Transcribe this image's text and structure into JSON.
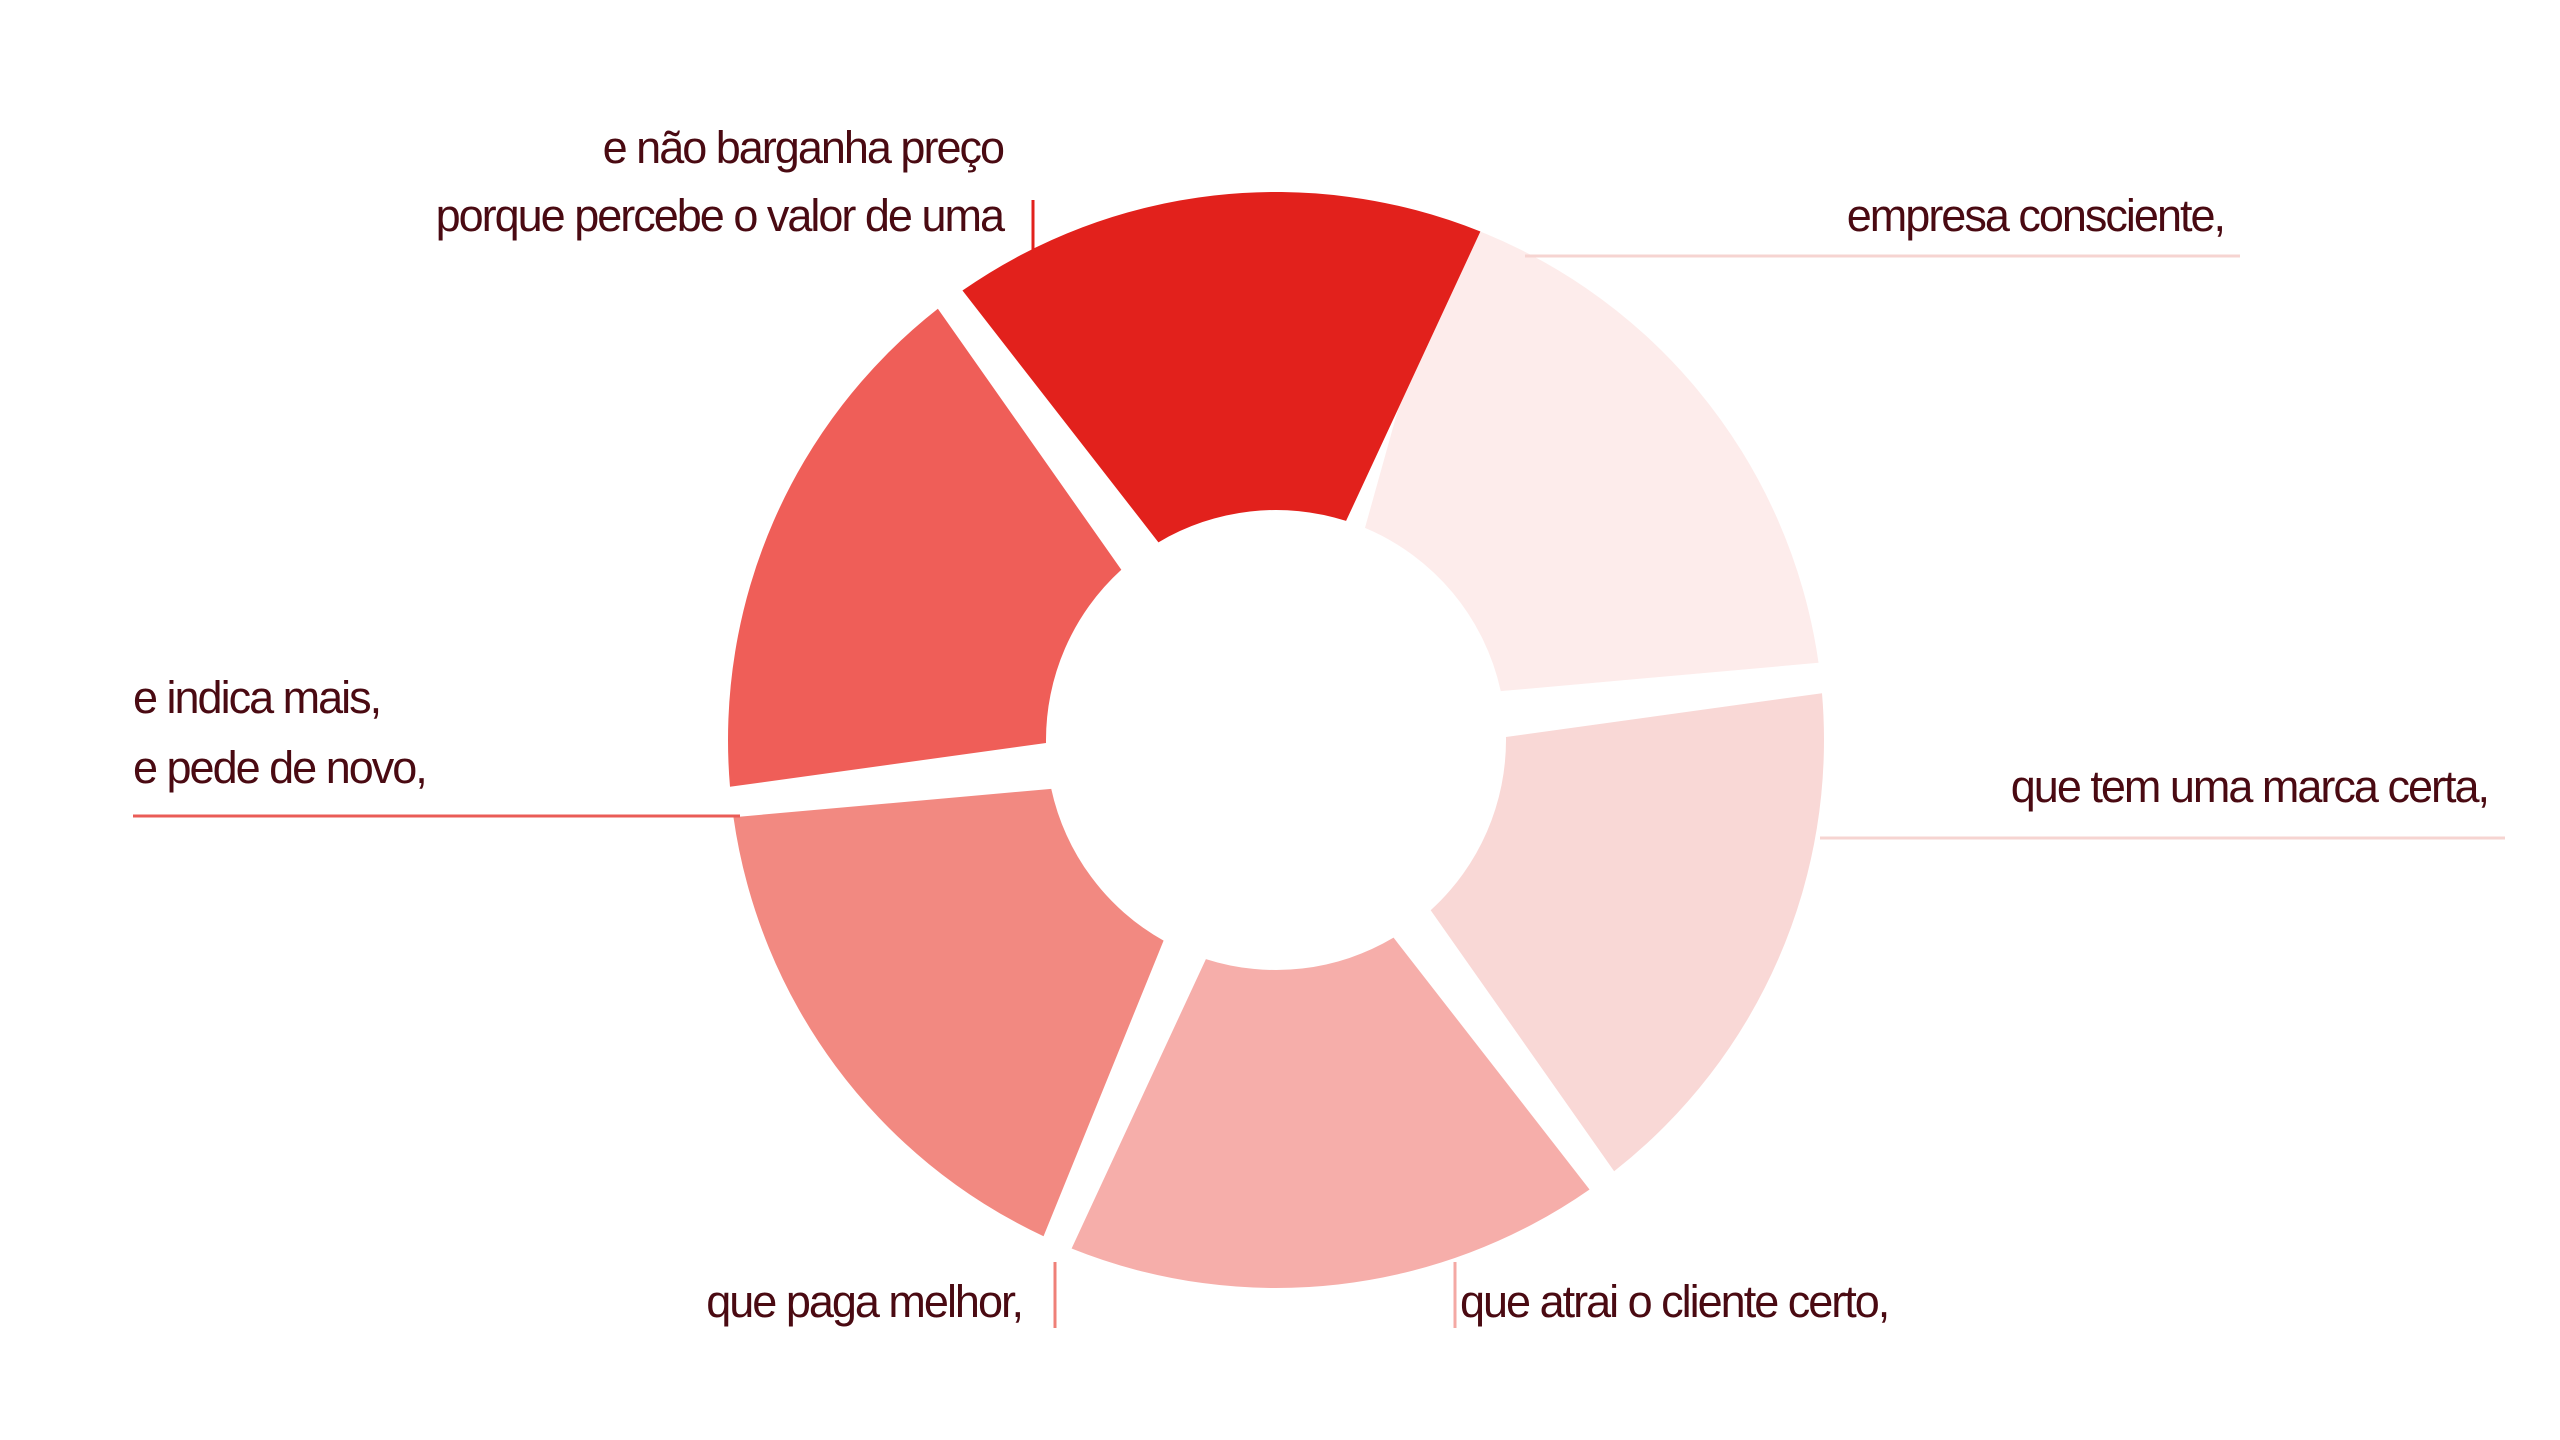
{
  "diagram": {
    "segments": [
      {
        "id": "empresa-consciente",
        "lines": [
          "empresa consciente,"
        ],
        "color": "#fdeceb",
        "leader_color": "#f6d4d1"
      },
      {
        "id": "marca-certa",
        "lines": [
          "que tem uma marca certa,"
        ],
        "color": "#f9d8d6",
        "leader_color": "#f6d4d1"
      },
      {
        "id": "cliente-certo",
        "lines": [
          "que atrai o cliente certo,"
        ],
        "color": "#f6aeaa",
        "leader_color": "#f4a9a4"
      },
      {
        "id": "paga-melhor",
        "lines": [
          "que paga melhor,"
        ],
        "color": "#f28981",
        "leader_color": "#ef8078"
      },
      {
        "id": "indica-mais",
        "lines": [
          "e indica mais,",
          "e pede de novo,"
        ],
        "color": "#ef5e58",
        "leader_color": "#ea5c57"
      },
      {
        "id": "nao-barganha",
        "lines": [
          "e não barganha preço",
          "porque percebe o valor de uma"
        ],
        "color": "#e2211c",
        "leader_color": "#e2211c"
      }
    ],
    "text_color": "#4a0a12"
  }
}
